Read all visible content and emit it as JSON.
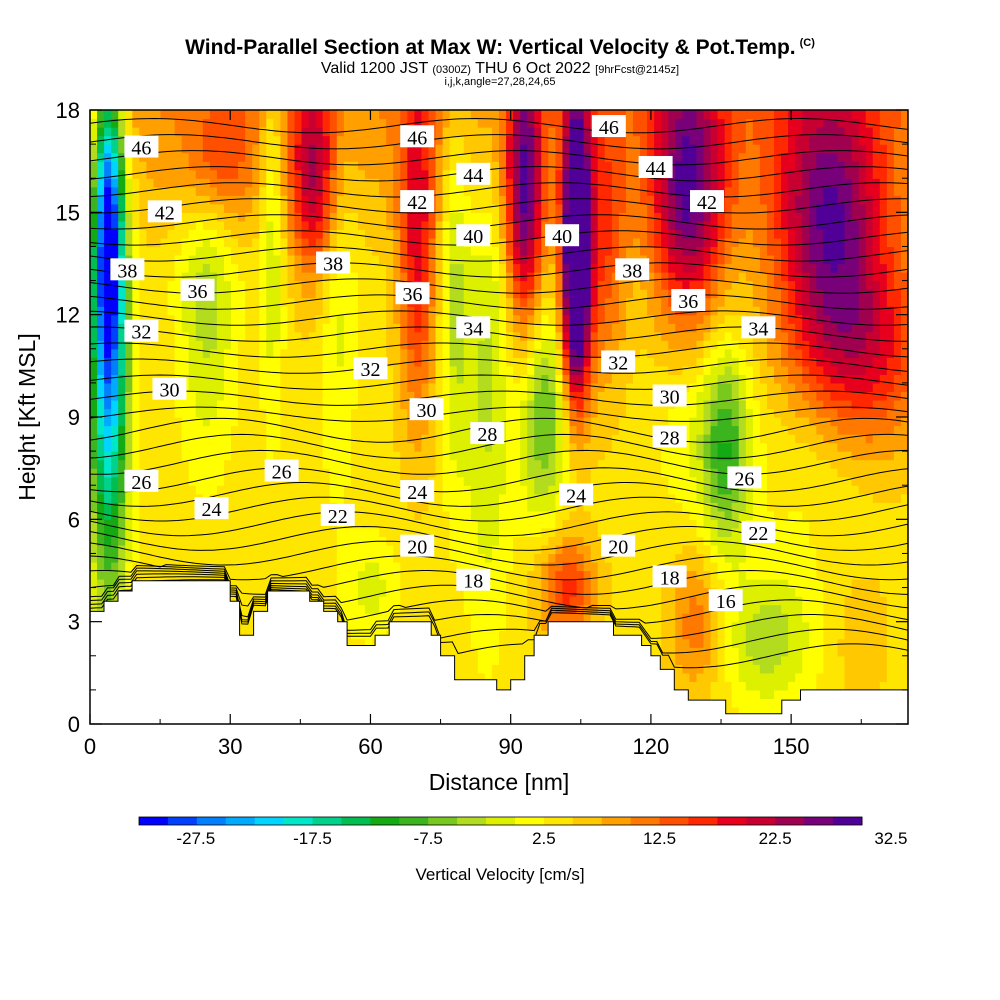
{
  "header": {
    "title": "Wind-Parallel Section at Max W: Vertical Velocity & Pot.Temp.",
    "copyright": "(C)",
    "valid_prefix": "Valid 1200 JST",
    "valid_utc": "(0300Z)",
    "valid_date": "THU 6 Oct 2022",
    "forecast": "[9hrFcst@2145z]",
    "indices": "i,j,k,angle=27,28,24,65"
  },
  "chart_data": {
    "type": "heatmap",
    "xlabel": "Distance [nm]",
    "ylabel": "Height [Kft MSL]",
    "xlim": [
      0,
      175
    ],
    "ylim": [
      0,
      18
    ],
    "x_ticks": [
      0,
      30,
      60,
      90,
      120,
      150
    ],
    "y_ticks": [
      0,
      3,
      6,
      9,
      12,
      15,
      18
    ],
    "colorbar": {
      "title": "Vertical Velocity [cm/s]",
      "tick_labels": [
        "-27.5",
        "-17.5",
        "-7.5",
        "2.5",
        "12.5",
        "22.5",
        "32.5"
      ],
      "tick_values": [
        -27.5,
        -17.5,
        -7.5,
        2.5,
        12.5,
        22.5,
        32.5
      ],
      "colors": [
        "#0000ff",
        "#0040ff",
        "#0080ff",
        "#00aaff",
        "#00d4ff",
        "#00e6c8",
        "#00d28c",
        "#00be50",
        "#14aa14",
        "#3cb41e",
        "#78c81e",
        "#b4dc1e",
        "#dcf000",
        "#ffff00",
        "#ffe600",
        "#ffc800",
        "#ffa000",
        "#ff7800",
        "#ff5000",
        "#ff2800",
        "#e6001e",
        "#c80032",
        "#a00050",
        "#780078",
        "#500096"
      ]
    },
    "terrain_kft": [
      [
        0,
        3.3
      ],
      [
        3,
        3.3
      ],
      [
        3,
        3.6
      ],
      [
        6,
        3.6
      ],
      [
        6,
        3.9
      ],
      [
        9,
        3.9
      ],
      [
        9,
        4.2
      ],
      [
        30,
        4.2
      ],
      [
        30,
        3.6
      ],
      [
        32,
        3.6
      ],
      [
        32,
        2.6
      ],
      [
        35,
        2.6
      ],
      [
        35,
        3.3
      ],
      [
        38,
        3.3
      ],
      [
        38,
        3.9
      ],
      [
        47,
        3.9
      ],
      [
        47,
        3.6
      ],
      [
        50,
        3.6
      ],
      [
        50,
        3.3
      ],
      [
        53,
        3.3
      ],
      [
        53,
        3.0
      ],
      [
        55,
        3.0
      ],
      [
        55,
        2.3
      ],
      [
        61,
        2.3
      ],
      [
        61,
        2.6
      ],
      [
        64,
        2.6
      ],
      [
        64,
        3.0
      ],
      [
        73,
        3.0
      ],
      [
        73,
        2.6
      ],
      [
        75,
        2.6
      ],
      [
        75,
        2.0
      ],
      [
        78,
        2.0
      ],
      [
        78,
        1.3
      ],
      [
        87,
        1.3
      ],
      [
        87,
        1.0
      ],
      [
        90,
        1.0
      ],
      [
        90,
        1.3
      ],
      [
        93,
        1.3
      ],
      [
        93,
        2.0
      ],
      [
        95,
        2.0
      ],
      [
        95,
        2.6
      ],
      [
        98,
        2.6
      ],
      [
        98,
        3.0
      ],
      [
        112,
        3.0
      ],
      [
        112,
        2.6
      ],
      [
        118,
        2.6
      ],
      [
        118,
        2.3
      ],
      [
        120,
        2.3
      ],
      [
        120,
        2.0
      ],
      [
        122,
        2.0
      ],
      [
        122,
        1.6
      ],
      [
        125,
        1.6
      ],
      [
        125,
        1.0
      ],
      [
        128,
        1.0
      ],
      [
        128,
        0.7
      ],
      [
        136,
        0.7
      ],
      [
        136,
        0.3
      ],
      [
        148,
        0.3
      ],
      [
        148,
        0.7
      ],
      [
        152,
        0.7
      ],
      [
        152,
        1.0
      ],
      [
        175,
        1.0
      ]
    ],
    "w_features": [
      {
        "x": 4,
        "z": 11,
        "sx": 4,
        "sz": 7,
        "w": -28
      },
      {
        "x": 4,
        "z": 15,
        "sx": 3,
        "sz": 4,
        "w": -20
      },
      {
        "x": 25,
        "z": 13,
        "sx": 6,
        "sz": 5,
        "w": -8
      },
      {
        "x": 27,
        "z": 16.5,
        "sx": 7,
        "sz": 2,
        "w": 10
      },
      {
        "x": 39,
        "z": 15,
        "sx": 2.5,
        "sz": 6,
        "w": -7
      },
      {
        "x": 48,
        "z": 16,
        "sx": 5,
        "sz": 3,
        "w": 16
      },
      {
        "x": 53,
        "z": 13,
        "sx": 4,
        "sz": 6,
        "w": -5
      },
      {
        "x": 70,
        "z": 14,
        "sx": 4,
        "sz": 5,
        "w": 14
      },
      {
        "x": 78,
        "z": 13,
        "sx": 3,
        "sz": 6,
        "w": -7
      },
      {
        "x": 85,
        "z": 10,
        "sx": 5,
        "sz": 7,
        "w": -7
      },
      {
        "x": 93,
        "z": 15.5,
        "sx": 4,
        "sz": 4,
        "w": 22
      },
      {
        "x": 97,
        "z": 9,
        "sx": 5,
        "sz": 3,
        "w": -12
      },
      {
        "x": 104,
        "z": 15,
        "sx": 3,
        "sz": 4,
        "w": 28
      },
      {
        "x": 104,
        "z": 12,
        "sx": 3,
        "sz": 3,
        "w": 18
      },
      {
        "x": 110,
        "z": 14,
        "sx": 5,
        "sz": 4,
        "w": 10
      },
      {
        "x": 128,
        "z": 15.5,
        "sx": 8,
        "sz": 4,
        "w": 22
      },
      {
        "x": 158,
        "z": 15,
        "sx": 12,
        "sz": 4,
        "w": 20
      },
      {
        "x": 136,
        "z": 8,
        "sx": 5,
        "sz": 3,
        "w": -12
      },
      {
        "x": 130,
        "z": 9,
        "sx": 10,
        "sz": 3,
        "w": -4
      },
      {
        "x": 155,
        "z": 8,
        "sx": 12,
        "sz": 3,
        "w": -3
      },
      {
        "x": 102,
        "z": 4,
        "sx": 6,
        "sz": 1.5,
        "w": 12
      },
      {
        "x": 145,
        "z": 2.5,
        "sx": 10,
        "sz": 2,
        "w": -8
      },
      {
        "x": 165,
        "z": 2.5,
        "sx": 6,
        "sz": 2,
        "w": 3
      },
      {
        "x": 60,
        "z": 4,
        "sx": 6,
        "sz": 1.5,
        "w": -5
      },
      {
        "x": 130,
        "z": 3,
        "sx": 6,
        "sz": 2,
        "w": 8
      },
      {
        "x": 165,
        "z": 11,
        "sx": 15,
        "sz": 3,
        "w": 14
      }
    ],
    "w_background": 4,
    "contour_labels": [
      {
        "text": "46",
        "x": 11,
        "z": 16.9
      },
      {
        "text": "42",
        "x": 16,
        "z": 15.0
      },
      {
        "text": "38",
        "x": 8,
        "z": 13.3
      },
      {
        "text": "36",
        "x": 23,
        "z": 12.7
      },
      {
        "text": "32",
        "x": 11,
        "z": 11.5
      },
      {
        "text": "30",
        "x": 17,
        "z": 9.8
      },
      {
        "text": "26",
        "x": 11,
        "z": 7.1
      },
      {
        "text": "24",
        "x": 26,
        "z": 6.3
      },
      {
        "text": "26",
        "x": 41,
        "z": 7.4
      },
      {
        "text": "22",
        "x": 53,
        "z": 6.1
      },
      {
        "text": "38",
        "x": 52,
        "z": 13.5
      },
      {
        "text": "46",
        "x": 70,
        "z": 17.2
      },
      {
        "text": "42",
        "x": 70,
        "z": 15.3
      },
      {
        "text": "36",
        "x": 69,
        "z": 12.6
      },
      {
        "text": "32",
        "x": 60,
        "z": 10.4
      },
      {
        "text": "30",
        "x": 72,
        "z": 9.2
      },
      {
        "text": "24",
        "x": 70,
        "z": 6.8
      },
      {
        "text": "20",
        "x": 70,
        "z": 5.2
      },
      {
        "text": "44",
        "x": 82,
        "z": 16.1
      },
      {
        "text": "40",
        "x": 82,
        "z": 14.3
      },
      {
        "text": "34",
        "x": 82,
        "z": 11.6
      },
      {
        "text": "28",
        "x": 85,
        "z": 8.5
      },
      {
        "text": "18",
        "x": 82,
        "z": 4.2
      },
      {
        "text": "46",
        "x": 111,
        "z": 17.5
      },
      {
        "text": "40",
        "x": 101,
        "z": 14.3
      },
      {
        "text": "24",
        "x": 104,
        "z": 6.7
      },
      {
        "text": "44",
        "x": 121,
        "z": 16.3
      },
      {
        "text": "38",
        "x": 116,
        "z": 13.3
      },
      {
        "text": "32",
        "x": 113,
        "z": 10.6
      },
      {
        "text": "20",
        "x": 113,
        "z": 5.2
      },
      {
        "text": "42",
        "x": 132,
        "z": 15.3
      },
      {
        "text": "36",
        "x": 128,
        "z": 12.4
      },
      {
        "text": "30",
        "x": 124,
        "z": 9.6
      },
      {
        "text": "28",
        "x": 124,
        "z": 8.4
      },
      {
        "text": "18",
        "x": 124,
        "z": 4.3
      },
      {
        "text": "34",
        "x": 143,
        "z": 11.6
      },
      {
        "text": "26",
        "x": 140,
        "z": 7.2
      },
      {
        "text": "22",
        "x": 143,
        "z": 5.6
      },
      {
        "text": "16",
        "x": 136,
        "z": 3.6
      }
    ],
    "theta_levels": [
      14,
      15,
      16,
      17,
      18,
      19,
      20,
      21,
      22,
      23,
      24,
      25,
      26,
      27,
      28,
      29,
      30,
      31,
      32,
      33,
      34,
      35,
      36,
      37,
      38,
      39,
      40,
      41,
      42,
      43,
      44,
      45,
      46,
      47,
      48
    ]
  }
}
